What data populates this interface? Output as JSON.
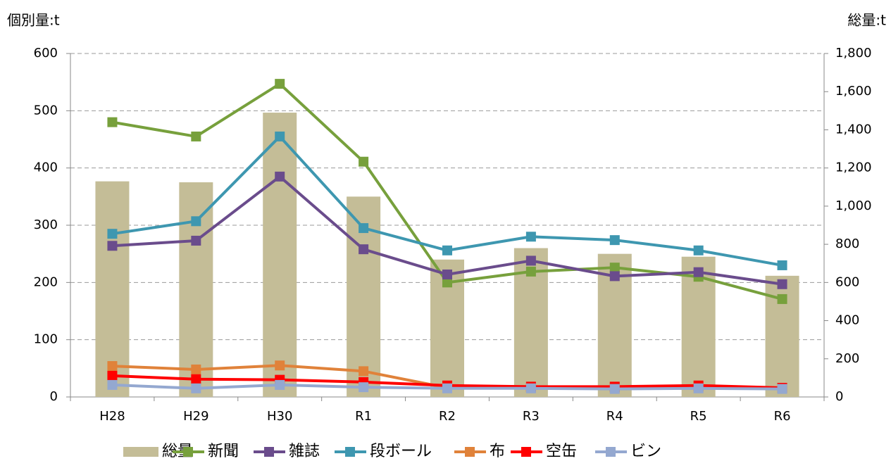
{
  "chart_data": {
    "type": "combo",
    "y_label": "個別量:t",
    "y2_label": "総量:t",
    "categories": [
      "H28",
      "H29",
      "H30",
      "R1",
      "R2",
      "R3",
      "R4",
      "R5",
      "R6"
    ],
    "ylim": [
      0,
      600
    ],
    "yticks": [
      0,
      100,
      200,
      300,
      400,
      500,
      600
    ],
    "y2lim": [
      0,
      1800
    ],
    "y2ticks": [
      0,
      200,
      400,
      600,
      800,
      {
        "value": 1000,
        "label": "1,000"
      },
      {
        "value": 1200,
        "label": "1,200"
      },
      {
        "value": 1400,
        "label": "1,400"
      },
      {
        "value": 1600,
        "label": "1,600"
      },
      {
        "value": 1800,
        "label": "1,800"
      }
    ],
    "grid": true,
    "legend": "bottom",
    "series": [
      {
        "name": "総量",
        "type": "bar",
        "axis": "y2",
        "color": "#c4bd97",
        "values": [
          1130,
          1125,
          1490,
          1050,
          720,
          780,
          750,
          735,
          635
        ]
      },
      {
        "name": "新聞",
        "type": "line",
        "color": "#77a03c",
        "values": [
          480,
          455,
          547,
          411,
          200,
          219,
          226,
          210,
          171
        ]
      },
      {
        "name": "雑誌",
        "type": "line",
        "color": "#6a4c8c",
        "values": [
          264,
          273,
          385,
          258,
          214,
          238,
          211,
          218,
          197
        ]
      },
      {
        "name": "段ボール",
        "type": "line",
        "color": "#3e97b0",
        "values": [
          285,
          307,
          455,
          295,
          256,
          280,
          274,
          256,
          230
        ]
      },
      {
        "name": "布",
        "type": "line",
        "color": "#e0823a",
        "values": [
          54,
          48,
          55,
          45,
          16,
          16,
          16,
          17,
          15
        ]
      },
      {
        "name": "空缶",
        "type": "line",
        "color": "#ff0000",
        "values": [
          37,
          31,
          30,
          26,
          20,
          18,
          18,
          20,
          16
        ]
      },
      {
        "name": "ビン",
        "type": "line",
        "color": "#94a8d0",
        "values": [
          21,
          15,
          21,
          17,
          15,
          15,
          14,
          15,
          14
        ]
      }
    ]
  }
}
